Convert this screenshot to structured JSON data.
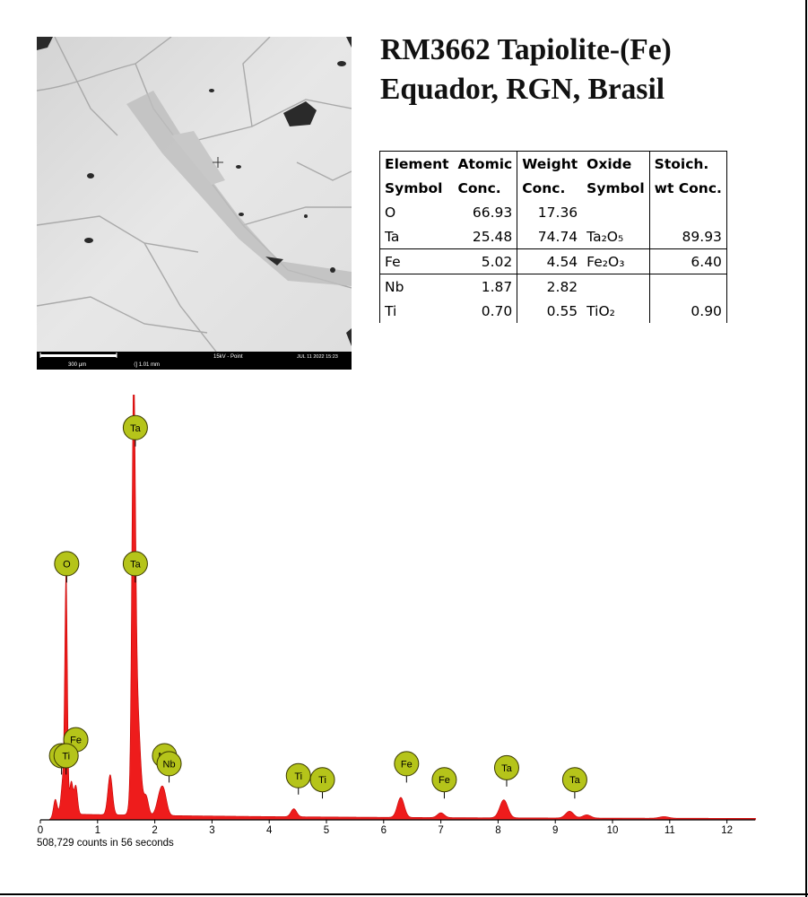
{
  "title": {
    "line1": "RM3662 Tapiolite-(Fe)",
    "line2": "Equador, RGN, Brasil"
  },
  "sem_image": {
    "scale_label": "300 µm",
    "field_width": "1.01 mm",
    "conditions": "15kV - Point",
    "timestamp": "JUL 11 2022 15:23"
  },
  "table": {
    "headers": [
      [
        "Element",
        "Symbol"
      ],
      [
        "Atomic",
        "Conc."
      ],
      [
        "Weight",
        "Conc."
      ],
      [
        "Oxide",
        "Symbol"
      ],
      [
        "Stoich.",
        "wt Conc."
      ]
    ],
    "rows": [
      {
        "element": "O",
        "atomic": "66.93",
        "weight": "17.36",
        "oxide": "",
        "oxide_sub": "",
        "stoich": ""
      },
      {
        "element": "Ta",
        "atomic": "25.48",
        "weight": "74.74",
        "oxide": "Ta₂O₅",
        "stoich": "89.93"
      },
      {
        "element": "Fe",
        "atomic": "5.02",
        "weight": "4.54",
        "oxide": "Fe₂O₃",
        "stoich": "6.40"
      },
      {
        "element": "Nb",
        "atomic": "1.87",
        "weight": "2.82",
        "oxide": "",
        "stoich": ""
      },
      {
        "element": "Ti",
        "atomic": "0.70",
        "weight": "0.55",
        "oxide": "TiO₂",
        "stoich": "0.90"
      }
    ]
  },
  "chart_data": {
    "type": "area",
    "xlabel": "",
    "ylabel": "",
    "footer": "508,729 counts in 56 seconds",
    "xlim": [
      0,
      12.5
    ],
    "x_ticks": [
      "0",
      "1",
      "2",
      "3",
      "4",
      "5",
      "6",
      "7",
      "8",
      "9",
      "10",
      "11",
      "12"
    ],
    "series_color": "#ee1c1c",
    "marker_color": "#b5c41a",
    "background_level": 0.012,
    "peaks": [
      {
        "x": 0.26,
        "height": 0.04,
        "width": 0.03
      },
      {
        "x": 0.4,
        "height": 0.09,
        "width": 0.035
      },
      {
        "x": 0.45,
        "height": 0.57,
        "width": 0.022
      },
      {
        "x": 0.54,
        "height": 0.08,
        "width": 0.03
      },
      {
        "x": 0.62,
        "height": 0.07,
        "width": 0.03
      },
      {
        "x": 1.22,
        "height": 0.1,
        "width": 0.04
      },
      {
        "x": 1.63,
        "height": 0.9,
        "width": 0.03
      },
      {
        "x": 1.68,
        "height": 0.3,
        "width": 0.06
      },
      {
        "x": 1.85,
        "height": 0.045,
        "width": 0.04
      },
      {
        "x": 2.1,
        "height": 0.055,
        "width": 0.06
      },
      {
        "x": 2.17,
        "height": 0.035,
        "width": 0.05
      },
      {
        "x": 4.43,
        "height": 0.02,
        "width": 0.05
      },
      {
        "x": 6.3,
        "height": 0.05,
        "width": 0.06
      },
      {
        "x": 7.0,
        "height": 0.012,
        "width": 0.06
      },
      {
        "x": 8.1,
        "height": 0.045,
        "width": 0.07
      },
      {
        "x": 9.25,
        "height": 0.017,
        "width": 0.07
      },
      {
        "x": 9.55,
        "height": 0.008,
        "width": 0.07
      },
      {
        "x": 10.9,
        "height": 0.004,
        "width": 0.08
      }
    ],
    "labels": [
      {
        "element": "Ta",
        "x": 1.66,
        "marker_level": 0.94
      },
      {
        "element": "O",
        "x": 0.46,
        "marker_level": 0.6
      },
      {
        "element": "Ta",
        "x": 1.66,
        "marker_level": 0.6
      },
      {
        "element": "Fe",
        "x": 0.62,
        "marker_level": 0.16
      },
      {
        "element": "Ti",
        "x": 0.37,
        "marker_level": 0.12
      },
      {
        "element": "Ti",
        "x": 0.45,
        "marker_level": 0.12
      },
      {
        "element": "Nb",
        "x": 2.17,
        "marker_level": 0.12
      },
      {
        "element": "Nb",
        "x": 2.25,
        "marker_level": 0.1
      },
      {
        "element": "Ti",
        "x": 4.51,
        "marker_level": 0.07
      },
      {
        "element": "Ti",
        "x": 4.93,
        "marker_level": 0.06
      },
      {
        "element": "Fe",
        "x": 6.4,
        "marker_level": 0.1
      },
      {
        "element": "Fe",
        "x": 7.06,
        "marker_level": 0.06
      },
      {
        "element": "Ta",
        "x": 8.15,
        "marker_level": 0.09
      },
      {
        "element": "Ta",
        "x": 9.34,
        "marker_level": 0.06
      }
    ]
  }
}
